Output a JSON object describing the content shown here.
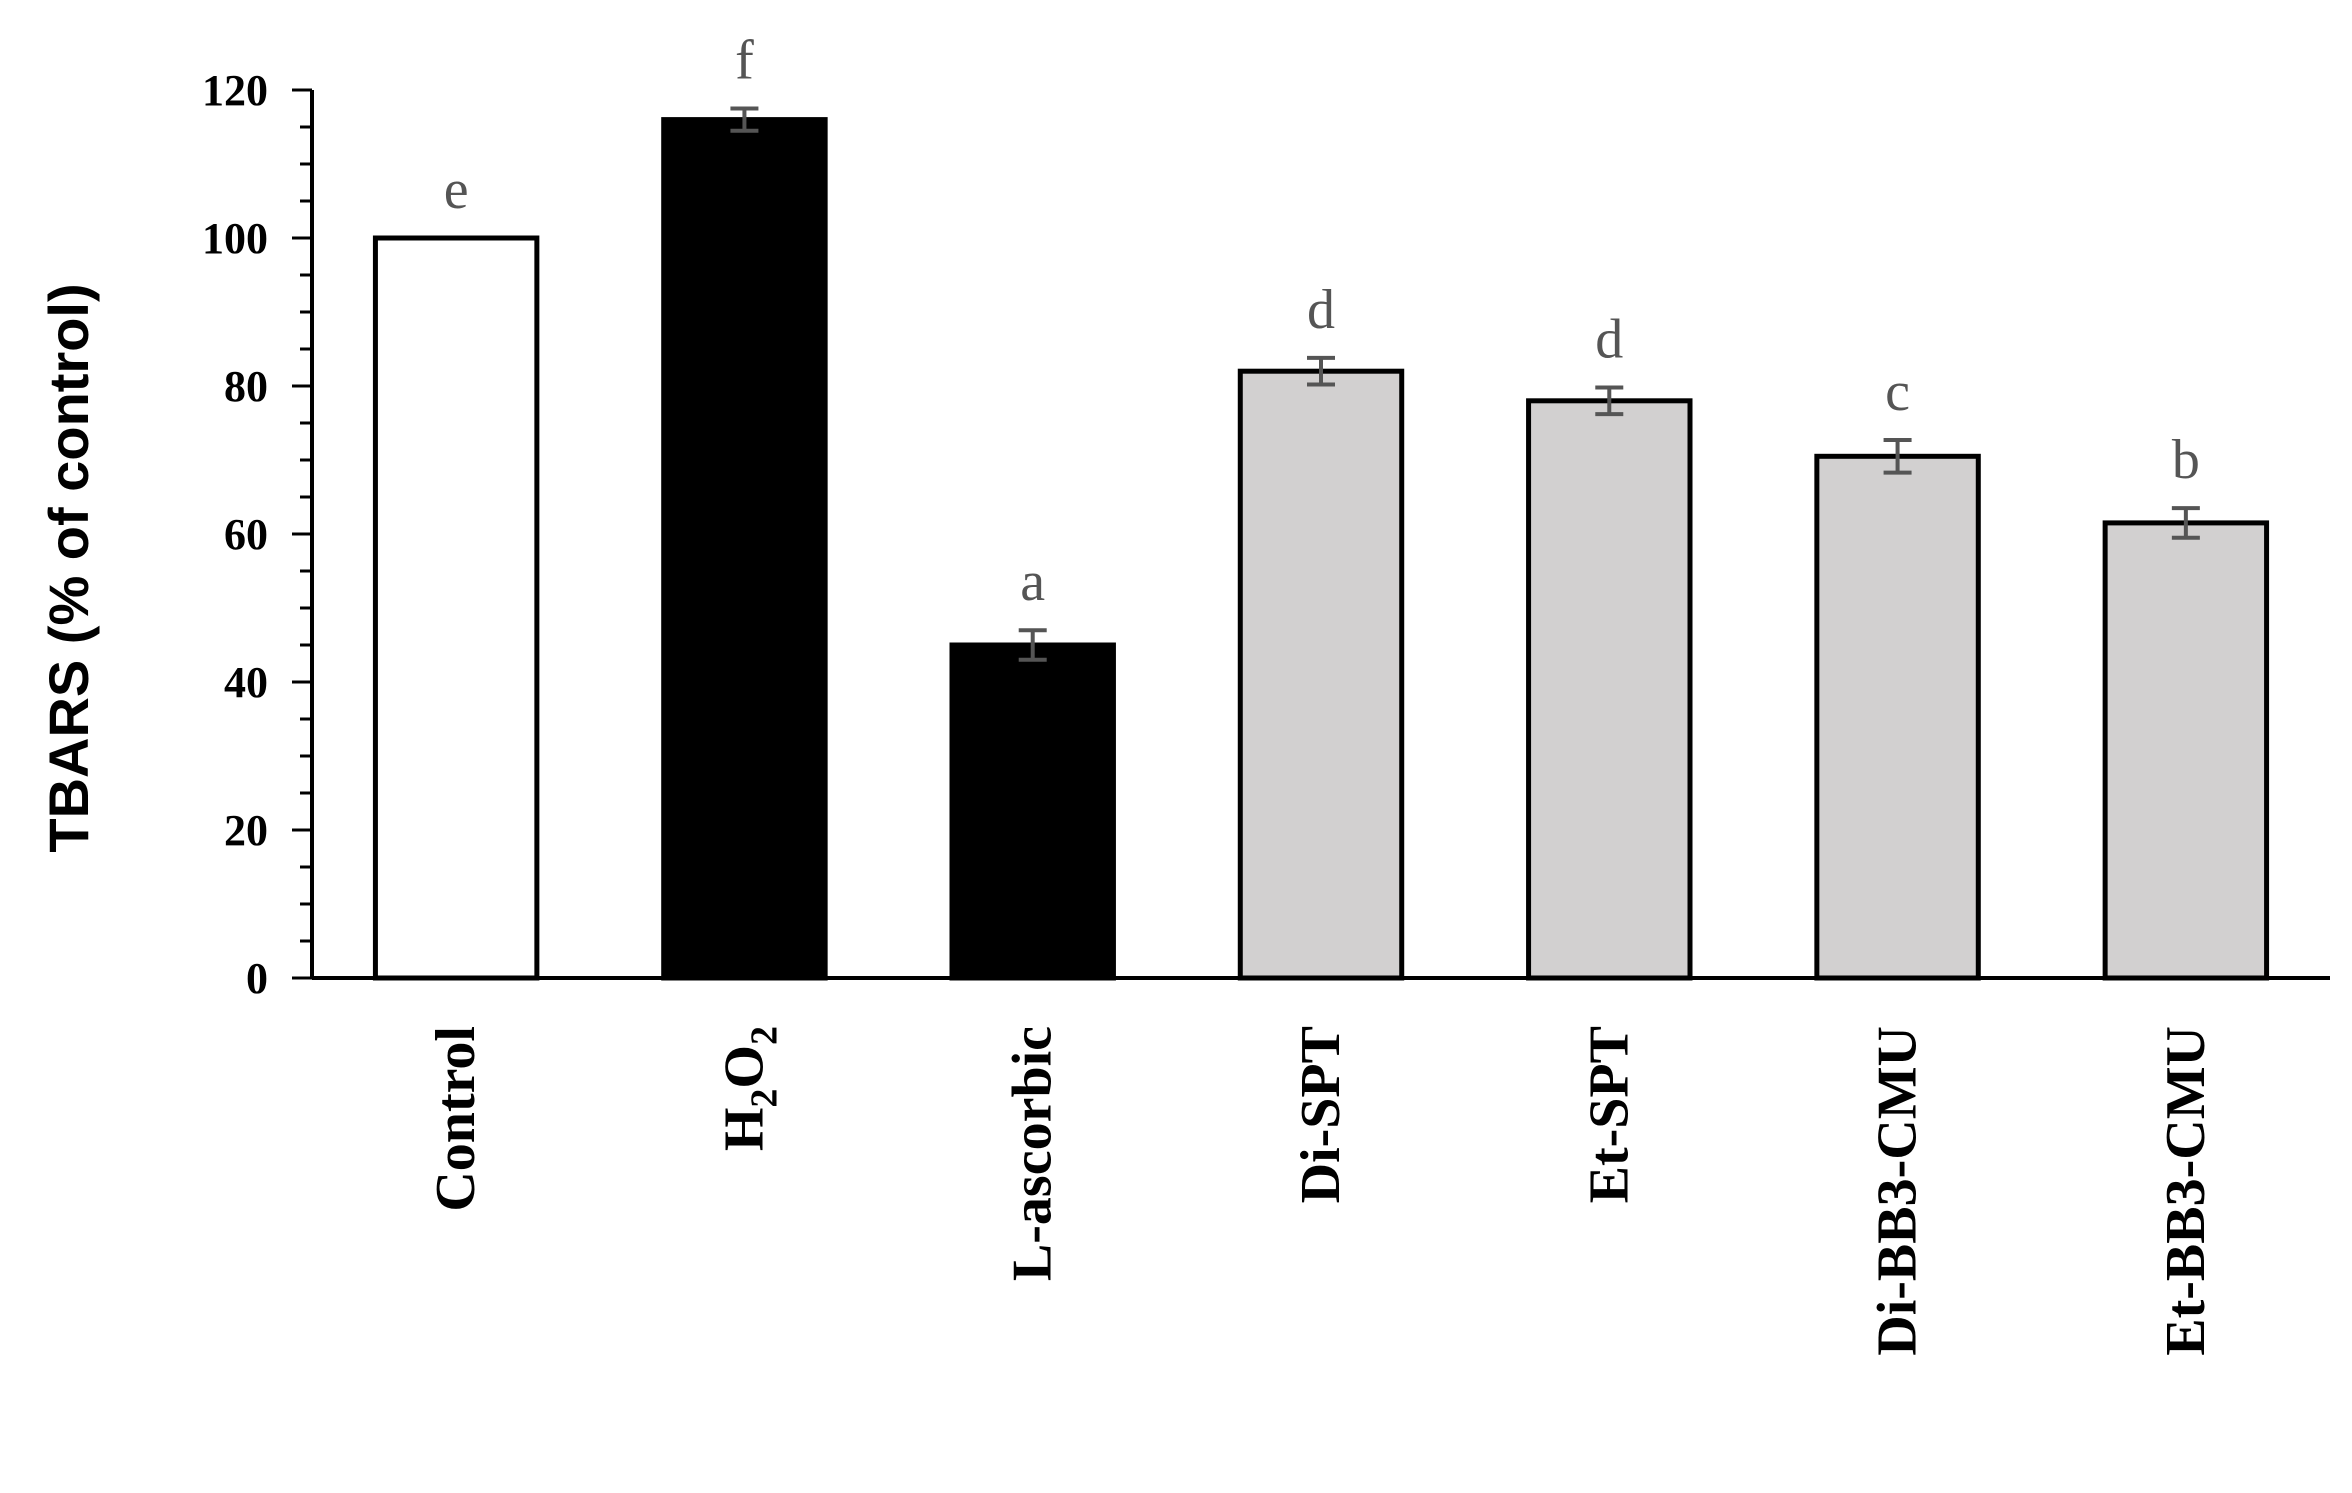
{
  "chart_data": {
    "type": "bar",
    "ylabel": "TBARS (% of control)",
    "ylim": [
      0,
      120
    ],
    "yticks": [
      0,
      20,
      40,
      60,
      80,
      100,
      120
    ],
    "categories": [
      {
        "label": "Control",
        "value": 100,
        "error": 0,
        "sig": "e",
        "fill": "#ffffff"
      },
      {
        "label": "H2O2",
        "label_main": "H",
        "label_sub1": "2",
        "label_mid": "O",
        "label_sub2": "2",
        "value": 116,
        "error": 1.5,
        "sig": "f",
        "fill": "#000000"
      },
      {
        "label": "L-ascorbic",
        "value": 45,
        "error": 2.0,
        "sig": "a",
        "fill": "#000000"
      },
      {
        "label": "Di-SPT",
        "value": 82,
        "error": 1.8,
        "sig": "d",
        "fill": "#d2d0d0"
      },
      {
        "label": "Et-SPT",
        "value": 78,
        "error": 1.8,
        "sig": "d",
        "fill": "#d2d0d0"
      },
      {
        "label": "Di-BB3-CMU",
        "value": 70.5,
        "error": 2.2,
        "sig": "c",
        "fill": "#d2d0d0"
      },
      {
        "label": "Et-BB3-CMU",
        "value": 61.5,
        "error": 2.0,
        "sig": "b",
        "fill": "#d2d0d0"
      }
    ],
    "grid": false,
    "legend": "none"
  }
}
